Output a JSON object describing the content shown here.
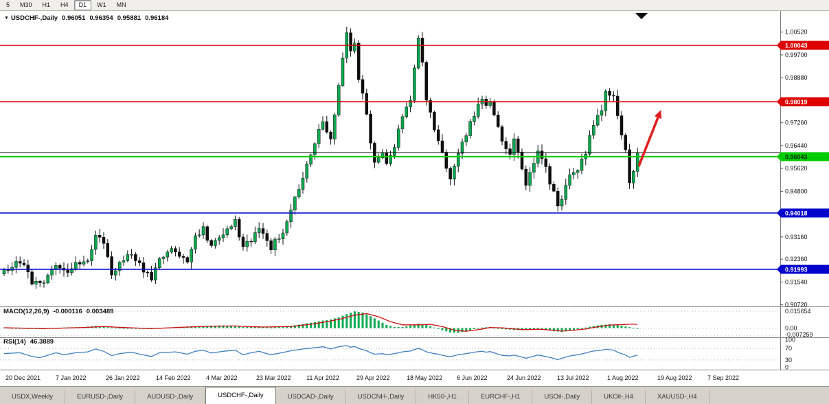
{
  "toolbar": {
    "timeframes": [
      {
        "label": "5",
        "active": false
      },
      {
        "label": "M30",
        "active": false
      },
      {
        "label": "H1",
        "active": false
      },
      {
        "label": "H4",
        "active": false
      },
      {
        "label": "D1",
        "active": true
      },
      {
        "label": "W1",
        "active": false
      },
      {
        "label": "MN",
        "active": false
      }
    ]
  },
  "chart": {
    "expand_icon": "▼",
    "title": "USDCHF-,Daily",
    "ohlc": {
      "open": "0.96051",
      "high": "0.96354",
      "low": "0.95881",
      "close": "0.96184"
    }
  },
  "indicators": {
    "macd": {
      "label": "MACD(12,26,9)",
      "value_main": "-0.000116",
      "value_signal": "0.003489"
    },
    "rsi": {
      "label": "RSI(14)",
      "value": "46.3889"
    }
  },
  "tabs": [
    {
      "label": "USDX,Weekly",
      "active": false
    },
    {
      "label": "EURUSD-,Daily",
      "active": false
    },
    {
      "label": "AUDUSD-,Daily",
      "active": false
    },
    {
      "label": "USDCHF-,Daily",
      "active": true
    },
    {
      "label": "USDCAD-,Daily",
      "active": false
    },
    {
      "label": "USDCNH-,Daily",
      "active": false
    },
    {
      "label": "HK50-,H1",
      "active": false
    },
    {
      "label": "EURCHF-,H1",
      "active": false
    },
    {
      "label": "USOil-,Daily",
      "active": false
    },
    {
      "label": "UKOil-,H4",
      "active": false
    },
    {
      "label": "XAUUSD-,H4",
      "active": false
    }
  ],
  "chart_data": {
    "type": "candlestick",
    "symbol": "USDCHF-",
    "timeframe": "Daily",
    "ohlc_current": {
      "open": 0.96051,
      "high": 0.96354,
      "low": 0.95881,
      "close": 0.96184
    },
    "num_candles": 160,
    "price_path_anchors": [
      [
        0,
        0.9195
      ],
      [
        4,
        0.923
      ],
      [
        7,
        0.9155
      ],
      [
        9,
        0.9145
      ],
      [
        13,
        0.9215
      ],
      [
        15,
        0.9185
      ],
      [
        18,
        0.922
      ],
      [
        21,
        0.923
      ],
      [
        23,
        0.9325
      ],
      [
        25,
        0.929
      ],
      [
        27,
        0.9185
      ],
      [
        29,
        0.922
      ],
      [
        32,
        0.9255
      ],
      [
        34,
        0.9215
      ],
      [
        37,
        0.9165
      ],
      [
        39,
        0.924
      ],
      [
        43,
        0.927
      ],
      [
        46,
        0.923
      ],
      [
        48,
        0.932
      ],
      [
        50,
        0.9345
      ],
      [
        52,
        0.9285
      ],
      [
        55,
        0.933
      ],
      [
        58,
        0.937
      ],
      [
        60,
        0.927
      ],
      [
        62,
        0.931
      ],
      [
        64,
        0.9355
      ],
      [
        67,
        0.928
      ],
      [
        70,
        0.933
      ],
      [
        72,
        0.942
      ],
      [
        75,
        0.953
      ],
      [
        77,
        0.961
      ],
      [
        79,
        0.97
      ],
      [
        80,
        0.973
      ],
      [
        82,
        0.967
      ],
      [
        84,
        0.985
      ],
      [
        85,
        0.996
      ],
      [
        86,
        1.004
      ],
      [
        87,
        0.9985
      ],
      [
        88,
        1.001
      ],
      [
        89,
        0.988
      ],
      [
        91,
        0.976
      ],
      [
        92,
        0.966
      ],
      [
        93,
        0.959
      ],
      [
        95,
        0.963
      ],
      [
        96,
        0.9575
      ],
      [
        98,
        0.964
      ],
      [
        100,
        0.975
      ],
      [
        102,
        0.98
      ],
      [
        103,
        0.992
      ],
      [
        104,
        1.003
      ],
      [
        105,
        0.995
      ],
      [
        106,
        0.981
      ],
      [
        108,
        0.97
      ],
      [
        109,
        0.967
      ],
      [
        111,
        0.956
      ],
      [
        112,
        0.953
      ],
      [
        114,
        0.962
      ],
      [
        116,
        0.968
      ],
      [
        118,
        0.976
      ],
      [
        120,
        0.982
      ],
      [
        121,
        0.978
      ],
      [
        122,
        0.981
      ],
      [
        124,
        0.97
      ],
      [
        125,
        0.965
      ],
      [
        127,
        0.962
      ],
      [
        128,
        0.966
      ],
      [
        130,
        0.957
      ],
      [
        131,
        0.951
      ],
      [
        133,
        0.958
      ],
      [
        134,
        0.962
      ],
      [
        136,
        0.956
      ],
      [
        138,
        0.947
      ],
      [
        139,
        0.9415
      ],
      [
        140,
        0.945
      ],
      [
        142,
        0.953
      ],
      [
        144,
        0.956
      ],
      [
        146,
        0.962
      ],
      [
        147,
        0.968
      ],
      [
        148,
        0.972
      ],
      [
        150,
        0.978
      ],
      [
        151,
        0.984
      ],
      [
        153,
        0.981
      ],
      [
        154,
        0.974
      ],
      [
        156,
        0.962
      ],
      [
        157,
        0.951
      ],
      [
        158,
        0.956
      ],
      [
        159,
        0.96184
      ]
    ],
    "hlines": [
      {
        "price": 1.00043,
        "label": "1.00043",
        "color": "#DD0000",
        "label_fg": "#ffffff",
        "width": 1.4,
        "kind": "resistance-line"
      },
      {
        "price": 0.98019,
        "label": "0.98019",
        "color": "#DD0000",
        "label_fg": "#ffffff",
        "width": 1.4,
        "kind": "resistance-line"
      },
      {
        "price": 0.96184,
        "label": "",
        "color": "#000000",
        "label_fg": "#ffffff",
        "width": 1,
        "kind": "bid-price-line"
      },
      {
        "price": 0.96043,
        "label": "0.96043",
        "color": "#00CC00",
        "label_fg": "#052805",
        "width": 2.2,
        "kind": "support-line"
      },
      {
        "price": 0.94018,
        "label": "0.94018",
        "color": "#0000CC",
        "label_fg": "#ffffff",
        "width": 1.6,
        "kind": "support-line"
      },
      {
        "price": 0.91993,
        "label": "0.91993",
        "color": "#0000CC",
        "label_fg": "#ffffff",
        "width": 1.6,
        "kind": "support-line"
      }
    ],
    "price_axis_ticks": [
      {
        "label": "1.00520",
        "value": 1.0052
      },
      {
        "label": "0.99700",
        "value": 0.997
      },
      {
        "label": "0.98880",
        "value": 0.9888
      },
      {
        "label": "0.97260",
        "value": 0.9726
      },
      {
        "label": "0.96440",
        "value": 0.9644
      },
      {
        "label": "0.95620",
        "value": 0.9562
      },
      {
        "label": "0.94800",
        "value": 0.948
      },
      {
        "label": "0.93160",
        "value": 0.9316
      },
      {
        "label": "0.92360",
        "value": 0.9236
      },
      {
        "label": "0.91540",
        "value": 0.9154
      },
      {
        "label": "0.90720",
        "value": 0.9072
      }
    ],
    "date_axis": [
      "20 Dec 2021",
      "7 Jan 2022",
      "26 Jan 2022",
      "14 Feb 2022",
      "4 Mar 2022",
      "23 Mar 2022",
      "11 Apr 2022",
      "29 Apr 2022",
      "18 May 2022",
      "6 Jun 2022",
      "24 Jun 2022",
      "13 Jul 2022",
      "1 Aug 2022",
      "19 Aug 2022",
      "7 Sep 2022"
    ],
    "macd": {
      "ticks": [
        {
          "label": "0.015654",
          "value": 0.015654
        },
        {
          "label": "0.00",
          "value": 0
        },
        {
          "label": "-0.007259",
          "value": -0.007259
        }
      ],
      "histogram_anchors": [
        [
          0,
          0.0005
        ],
        [
          6,
          -0.0008
        ],
        [
          10,
          -0.001
        ],
        [
          14,
          0.0004
        ],
        [
          20,
          0.001
        ],
        [
          23,
          0.002
        ],
        [
          27,
          0.0005
        ],
        [
          32,
          -0.0005
        ],
        [
          37,
          -0.001
        ],
        [
          43,
          0.001
        ],
        [
          50,
          0.002
        ],
        [
          55,
          0.0025
        ],
        [
          60,
          0.001
        ],
        [
          64,
          0.0015
        ],
        [
          67,
          0.0005
        ],
        [
          72,
          0.002
        ],
        [
          77,
          0.005
        ],
        [
          80,
          0.007
        ],
        [
          82,
          0.008
        ],
        [
          84,
          0.01
        ],
        [
          86,
          0.013
        ],
        [
          88,
          0.0156
        ],
        [
          90,
          0.0145
        ],
        [
          92,
          0.011
        ],
        [
          94,
          0.007
        ],
        [
          96,
          0.003
        ],
        [
          98,
          0.001
        ],
        [
          100,
          0.001
        ],
        [
          103,
          0.003
        ],
        [
          104,
          0.004
        ],
        [
          106,
          0.003
        ],
        [
          108,
          0.0005
        ],
        [
          110,
          -0.002
        ],
        [
          112,
          -0.004
        ],
        [
          114,
          -0.0045
        ],
        [
          116,
          -0.003
        ],
        [
          118,
          -0.001
        ],
        [
          120,
          0.0005
        ],
        [
          122,
          0.001
        ],
        [
          124,
          -0.0005
        ],
        [
          127,
          -0.0015
        ],
        [
          130,
          -0.002
        ],
        [
          132,
          -0.0015
        ],
        [
          134,
          -0.0005
        ],
        [
          136,
          -0.0015
        ],
        [
          138,
          -0.003
        ],
        [
          140,
          -0.0035
        ],
        [
          142,
          -0.0025
        ],
        [
          144,
          -0.001
        ],
        [
          146,
          0.0005
        ],
        [
          148,
          0.002
        ],
        [
          150,
          0.003
        ],
        [
          152,
          0.0035
        ],
        [
          154,
          0.003
        ],
        [
          156,
          0.0015
        ],
        [
          158,
          0.0003
        ],
        [
          159,
          -0.0001
        ]
      ],
      "signal_anchors": [
        [
          0,
          0.0003
        ],
        [
          10,
          -0.0005
        ],
        [
          20,
          0.0005
        ],
        [
          25,
          0.0015
        ],
        [
          30,
          0.0005
        ],
        [
          37,
          -0.0005
        ],
        [
          45,
          0.0008
        ],
        [
          52,
          0.0018
        ],
        [
          58,
          0.002
        ],
        [
          62,
          0.0012
        ],
        [
          66,
          0.001
        ],
        [
          72,
          0.0015
        ],
        [
          78,
          0.004
        ],
        [
          84,
          0.008
        ],
        [
          88,
          0.012
        ],
        [
          91,
          0.0135
        ],
        [
          94,
          0.0105
        ],
        [
          97,
          0.006
        ],
        [
          100,
          0.003
        ],
        [
          104,
          0.003
        ],
        [
          107,
          0.0035
        ],
        [
          110,
          0.0015
        ],
        [
          113,
          -0.002
        ],
        [
          116,
          -0.003
        ],
        [
          119,
          -0.0015
        ],
        [
          122,
          0.0005
        ],
        [
          125,
          0.0002
        ],
        [
          128,
          -0.0008
        ],
        [
          131,
          -0.0015
        ],
        [
          134,
          -0.001
        ],
        [
          137,
          -0.0018
        ],
        [
          140,
          -0.0028
        ],
        [
          143,
          -0.002
        ],
        [
          146,
          -0.0008
        ],
        [
          149,
          0.0012
        ],
        [
          152,
          0.0028
        ],
        [
          155,
          0.0032
        ],
        [
          157,
          0.0036
        ],
        [
          159,
          0.0035
        ]
      ]
    },
    "rsi": {
      "ticks": [
        {
          "label": "100",
          "value": 100
        },
        {
          "label": "70",
          "value": 70
        },
        {
          "label": "30",
          "value": 30
        },
        {
          "label": "0",
          "value": 0
        }
      ],
      "levels": [
        70,
        30
      ],
      "anchors": [
        [
          0,
          52
        ],
        [
          4,
          55
        ],
        [
          7,
          42
        ],
        [
          9,
          38
        ],
        [
          13,
          55
        ],
        [
          15,
          48
        ],
        [
          18,
          55
        ],
        [
          21,
          58
        ],
        [
          23,
          68
        ],
        [
          25,
          60
        ],
        [
          27,
          45
        ],
        [
          29,
          52
        ],
        [
          32,
          57
        ],
        [
          34,
          50
        ],
        [
          37,
          42
        ],
        [
          39,
          55
        ],
        [
          43,
          58
        ],
        [
          46,
          50
        ],
        [
          48,
          60
        ],
        [
          50,
          64
        ],
        [
          52,
          54
        ],
        [
          55,
          60
        ],
        [
          58,
          64
        ],
        [
          60,
          48
        ],
        [
          62,
          55
        ],
        [
          64,
          60
        ],
        [
          67,
          48
        ],
        [
          70,
          56
        ],
        [
          72,
          62
        ],
        [
          75,
          68
        ],
        [
          77,
          71
        ],
        [
          79,
          74
        ],
        [
          80,
          76
        ],
        [
          82,
          68
        ],
        [
          84,
          76
        ],
        [
          86,
          80
        ],
        [
          87,
          74
        ],
        [
          88,
          77
        ],
        [
          89,
          70
        ],
        [
          91,
          62
        ],
        [
          92,
          55
        ],
        [
          93,
          50
        ],
        [
          95,
          52
        ],
        [
          96,
          48
        ],
        [
          98,
          52
        ],
        [
          100,
          58
        ],
        [
          102,
          61
        ],
        [
          103,
          66
        ],
        [
          104,
          70
        ],
        [
          105,
          65
        ],
        [
          106,
          58
        ],
        [
          108,
          52
        ],
        [
          109,
          50
        ],
        [
          111,
          43
        ],
        [
          112,
          41
        ],
        [
          114,
          48
        ],
        [
          116,
          52
        ],
        [
          118,
          57
        ],
        [
          120,
          60
        ],
        [
          121,
          57
        ],
        [
          122,
          59
        ],
        [
          124,
          50
        ],
        [
          125,
          46
        ],
        [
          127,
          44
        ],
        [
          128,
          47
        ],
        [
          130,
          40
        ],
        [
          131,
          36
        ],
        [
          133,
          43
        ],
        [
          134,
          47
        ],
        [
          136,
          42
        ],
        [
          138,
          35
        ],
        [
          139,
          31
        ],
        [
          140,
          36
        ],
        [
          142,
          44
        ],
        [
          144,
          48
        ],
        [
          146,
          54
        ],
        [
          147,
          58
        ],
        [
          148,
          61
        ],
        [
          150,
          64
        ],
        [
          151,
          67
        ],
        [
          153,
          64
        ],
        [
          154,
          57
        ],
        [
          156,
          47
        ],
        [
          157,
          39
        ],
        [
          158,
          43
        ],
        [
          159,
          46.39
        ]
      ]
    },
    "trend_arrow": {
      "color": "#E02020",
      "from_price": 0.957,
      "to_price": 0.9745
    },
    "up_color": "#0BA94F",
    "down_color": "#0e0e0e"
  }
}
